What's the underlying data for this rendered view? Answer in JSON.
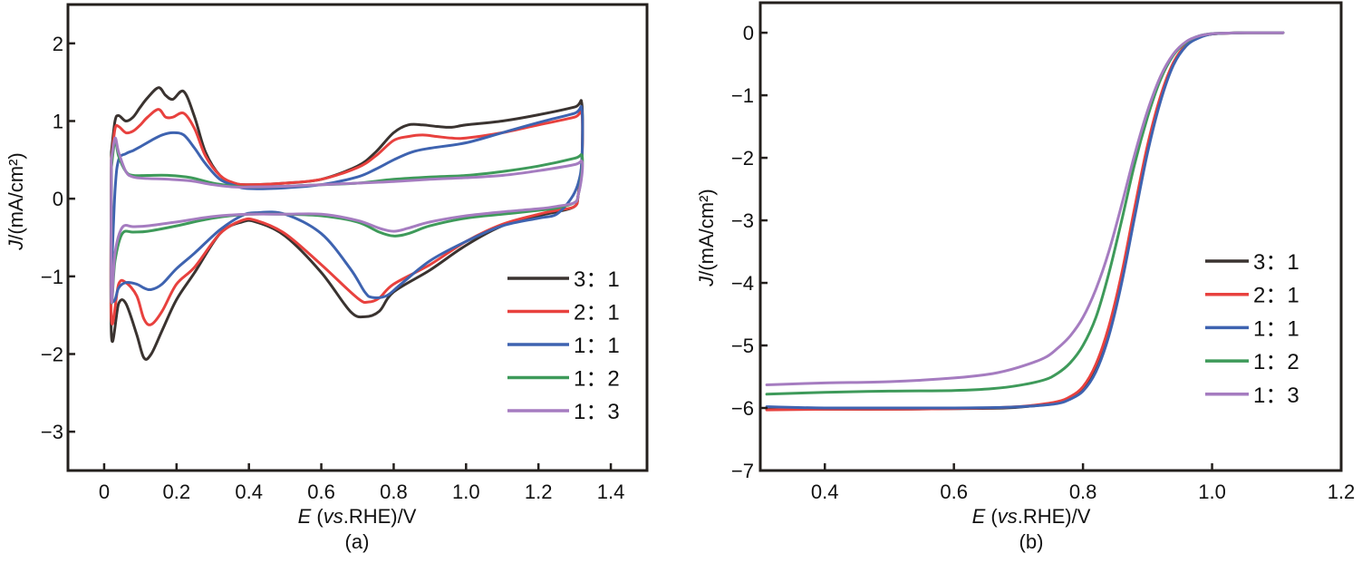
{
  "chart_data": [
    {
      "id": "a",
      "type": "line",
      "panel_label": "(a)",
      "title": "",
      "xlabel_parts": {
        "E": "E",
        "rest1": " (",
        "vs": "vs",
        "rest2": ".RHE)/V"
      },
      "ylabel": "J/(mA/cm²)",
      "xlim": [
        -0.1,
        1.5
      ],
      "ylim": [
        -3.5,
        2.5
      ],
      "xticks": [
        0,
        0.2,
        0.4,
        0.6,
        0.8,
        1.0,
        1.2,
        1.4
      ],
      "xtick_labels": [
        "0",
        "0.2",
        "0.4",
        "0.6",
        "0.8",
        "1.0",
        "1.2",
        "1.4"
      ],
      "yticks": [
        2,
        1,
        0,
        -1,
        -2,
        -3
      ],
      "ytick_labels": [
        "2",
        "1",
        "0",
        "−1",
        "−2",
        "−3"
      ],
      "grid": false,
      "legend_position": "bottom-right",
      "series": [
        {
          "name": "3：1",
          "color": "#3a3330",
          "x": [
            0.02,
            0.03,
            0.04,
            0.06,
            0.08,
            0.1,
            0.12,
            0.15,
            0.17,
            0.19,
            0.22,
            0.25,
            0.28,
            0.32,
            0.36,
            0.4,
            0.5,
            0.6,
            0.7,
            0.75,
            0.8,
            0.84,
            0.88,
            0.92,
            0.96,
            1.0,
            1.1,
            1.2,
            1.3,
            1.32,
            1.32,
            1.31,
            1.3,
            1.25,
            1.2,
            1.1,
            1.0,
            0.9,
            0.8,
            0.76,
            0.72,
            0.68,
            0.6,
            0.5,
            0.42,
            0.38,
            0.32,
            0.25,
            0.2,
            0.16,
            0.13,
            0.11,
            0.09,
            0.06,
            0.04,
            0.02,
            0.02
          ],
          "y": [
            0.6,
            1.0,
            1.07,
            1.0,
            1.05,
            1.18,
            1.3,
            1.43,
            1.33,
            1.28,
            1.38,
            1.05,
            0.6,
            0.3,
            0.2,
            0.18,
            0.2,
            0.25,
            0.42,
            0.6,
            0.85,
            0.95,
            0.95,
            0.93,
            0.92,
            0.95,
            1.0,
            1.08,
            1.18,
            1.22,
            0.5,
            0.05,
            -0.1,
            -0.17,
            -0.22,
            -0.35,
            -0.6,
            -0.92,
            -1.2,
            -1.45,
            -1.52,
            -1.45,
            -0.95,
            -0.48,
            -0.3,
            -0.3,
            -0.45,
            -0.95,
            -1.3,
            -1.7,
            -2.0,
            -2.05,
            -1.75,
            -1.35,
            -1.35,
            -1.75,
            0.6
          ]
        },
        {
          "name": "2：1",
          "color": "#e8413e",
          "x": [
            0.02,
            0.03,
            0.04,
            0.06,
            0.08,
            0.1,
            0.12,
            0.15,
            0.17,
            0.19,
            0.22,
            0.25,
            0.28,
            0.32,
            0.36,
            0.4,
            0.5,
            0.6,
            0.7,
            0.75,
            0.8,
            0.84,
            0.88,
            0.92,
            0.96,
            1.0,
            1.1,
            1.2,
            1.3,
            1.32,
            1.32,
            1.31,
            1.3,
            1.25,
            1.2,
            1.1,
            1.0,
            0.9,
            0.8,
            0.76,
            0.73,
            0.7,
            0.6,
            0.5,
            0.42,
            0.38,
            0.32,
            0.25,
            0.2,
            0.16,
            0.13,
            0.11,
            0.09,
            0.06,
            0.04,
            0.02,
            0.02
          ],
          "y": [
            0.5,
            0.9,
            0.93,
            0.85,
            0.87,
            0.95,
            1.05,
            1.15,
            1.05,
            1.05,
            1.1,
            0.9,
            0.55,
            0.3,
            0.2,
            0.18,
            0.2,
            0.25,
            0.4,
            0.55,
            0.75,
            0.8,
            0.82,
            0.8,
            0.78,
            0.78,
            0.85,
            0.95,
            1.05,
            1.1,
            0.45,
            0.05,
            -0.1,
            -0.15,
            -0.2,
            -0.33,
            -0.55,
            -0.85,
            -1.1,
            -1.28,
            -1.33,
            -1.28,
            -0.85,
            -0.45,
            -0.28,
            -0.28,
            -0.45,
            -0.88,
            -1.1,
            -1.45,
            -1.62,
            -1.55,
            -1.25,
            -1.08,
            -1.1,
            -1.55,
            0.5
          ]
        },
        {
          "name": "1：1",
          "color": "#3e63b0",
          "x": [
            0.02,
            0.03,
            0.04,
            0.06,
            0.08,
            0.1,
            0.13,
            0.16,
            0.19,
            0.22,
            0.25,
            0.28,
            0.32,
            0.36,
            0.4,
            0.5,
            0.6,
            0.7,
            0.75,
            0.8,
            0.85,
            0.9,
            1.0,
            1.1,
            1.2,
            1.3,
            1.32,
            1.32,
            1.31,
            1.29,
            1.25,
            1.2,
            1.1,
            1.0,
            0.9,
            0.82,
            0.78,
            0.74,
            0.72,
            0.68,
            0.6,
            0.5,
            0.42,
            0.38,
            0.32,
            0.25,
            0.2,
            0.16,
            0.13,
            0.11,
            0.09,
            0.06,
            0.04,
            0.03,
            0.02,
            0.02
          ],
          "y": [
            -1.0,
            0.1,
            0.5,
            0.58,
            0.62,
            0.67,
            0.75,
            0.82,
            0.85,
            0.82,
            0.65,
            0.45,
            0.25,
            0.17,
            0.13,
            0.14,
            0.18,
            0.28,
            0.38,
            0.5,
            0.6,
            0.65,
            0.72,
            0.85,
            0.98,
            1.1,
            1.15,
            0.5,
            0.2,
            0.0,
            -0.2,
            -0.25,
            -0.35,
            -0.55,
            -0.8,
            -1.1,
            -1.25,
            -1.27,
            -1.2,
            -0.9,
            -0.45,
            -0.2,
            -0.18,
            -0.22,
            -0.4,
            -0.7,
            -0.9,
            -1.1,
            -1.17,
            -1.15,
            -1.1,
            -1.08,
            -1.15,
            -1.3,
            -1.3,
            -1.0
          ]
        },
        {
          "name": "1：2",
          "color": "#3e9a5a",
          "x": [
            0.02,
            0.03,
            0.04,
            0.06,
            0.08,
            0.12,
            0.18,
            0.24,
            0.3,
            0.36,
            0.4,
            0.5,
            0.6,
            0.7,
            0.8,
            0.9,
            1.0,
            1.1,
            1.2,
            1.3,
            1.32,
            1.32,
            1.31,
            1.3,
            1.25,
            1.2,
            1.1,
            1.0,
            0.9,
            0.84,
            0.8,
            0.76,
            0.7,
            0.6,
            0.5,
            0.4,
            0.3,
            0.2,
            0.12,
            0.08,
            0.05,
            0.03,
            0.02,
            0.02
          ],
          "y": [
            0.4,
            0.75,
            0.55,
            0.35,
            0.3,
            0.3,
            0.3,
            0.27,
            0.2,
            0.16,
            0.15,
            0.16,
            0.18,
            0.2,
            0.25,
            0.28,
            0.3,
            0.35,
            0.42,
            0.52,
            0.56,
            0.35,
            0.05,
            -0.05,
            -0.12,
            -0.15,
            -0.2,
            -0.25,
            -0.35,
            -0.45,
            -0.48,
            -0.43,
            -0.3,
            -0.22,
            -0.2,
            -0.2,
            -0.25,
            -0.35,
            -0.42,
            -0.43,
            -0.45,
            -0.8,
            -1.3,
            0.4
          ]
        },
        {
          "name": "1：3",
          "color": "#a57cc0",
          "x": [
            0.02,
            0.03,
            0.04,
            0.06,
            0.08,
            0.12,
            0.18,
            0.24,
            0.3,
            0.36,
            0.4,
            0.5,
            0.6,
            0.7,
            0.8,
            0.9,
            1.0,
            1.1,
            1.2,
            1.3,
            1.32,
            1.32,
            1.31,
            1.3,
            1.25,
            1.2,
            1.1,
            1.0,
            0.9,
            0.84,
            0.8,
            0.76,
            0.7,
            0.6,
            0.5,
            0.4,
            0.3,
            0.2,
            0.12,
            0.08,
            0.05,
            0.03,
            0.02,
            0.02
          ],
          "y": [
            0.5,
            0.78,
            0.6,
            0.35,
            0.28,
            0.26,
            0.25,
            0.23,
            0.18,
            0.15,
            0.15,
            0.16,
            0.18,
            0.2,
            0.22,
            0.25,
            0.27,
            0.3,
            0.36,
            0.44,
            0.48,
            0.3,
            0.05,
            -0.05,
            -0.1,
            -0.13,
            -0.17,
            -0.22,
            -0.3,
            -0.38,
            -0.42,
            -0.38,
            -0.28,
            -0.2,
            -0.2,
            -0.2,
            -0.23,
            -0.3,
            -0.35,
            -0.36,
            -0.37,
            -0.7,
            -1.3,
            0.5
          ]
        }
      ]
    },
    {
      "id": "b",
      "type": "line",
      "panel_label": "(b)",
      "title": "",
      "xlabel_parts": {
        "E": "E",
        "rest1": " (",
        "vs": "vs",
        "rest2": ".RHE)/V"
      },
      "ylabel": "J/(mA/cm²)",
      "xlim": [
        0.3,
        1.2
      ],
      "ylim": [
        -7,
        0.48
      ],
      "xticks": [
        0.4,
        0.6,
        0.8,
        1.0,
        1.2
      ],
      "xtick_labels": [
        "0.4",
        "0.6",
        "0.8",
        "1.0",
        "1.2"
      ],
      "yticks": [
        0,
        -1,
        -2,
        -3,
        -4,
        -5,
        -6,
        -7
      ],
      "ytick_labels": [
        "0",
        "−1",
        "−2",
        "−3",
        "−4",
        "−5",
        "−6",
        "−7"
      ],
      "grid": false,
      "legend_position": "center-right",
      "series": [
        {
          "name": "3：1",
          "color": "#3a3330",
          "x": [
            0.31,
            0.4,
            0.5,
            0.6,
            0.68,
            0.72,
            0.76,
            0.78,
            0.8,
            0.82,
            0.84,
            0.86,
            0.88,
            0.9,
            0.92,
            0.94,
            0.96,
            0.98,
            1.0,
            1.03,
            1.06,
            1.11
          ],
          "y": [
            -6.02,
            -6.02,
            -6.02,
            -6.01,
            -6.0,
            -5.97,
            -5.92,
            -5.85,
            -5.7,
            -5.35,
            -4.75,
            -3.9,
            -2.85,
            -1.85,
            -1.05,
            -0.5,
            -0.2,
            -0.07,
            -0.02,
            -0.005,
            0.0,
            0.0
          ]
        },
        {
          "name": "2：1",
          "color": "#e8413e",
          "x": [
            0.31,
            0.4,
            0.5,
            0.6,
            0.68,
            0.72,
            0.76,
            0.78,
            0.8,
            0.82,
            0.84,
            0.86,
            0.88,
            0.9,
            0.92,
            0.94,
            0.96,
            0.98,
            1.0,
            1.03,
            1.06,
            1.11
          ],
          "y": [
            -6.03,
            -6.02,
            -6.02,
            -6.01,
            -5.99,
            -5.96,
            -5.9,
            -5.82,
            -5.66,
            -5.3,
            -4.7,
            -3.85,
            -2.8,
            -1.8,
            -1.02,
            -0.48,
            -0.19,
            -0.07,
            -0.02,
            -0.005,
            0.0,
            0.0
          ]
        },
        {
          "name": "1：1",
          "color": "#3e63b0",
          "x": [
            0.31,
            0.4,
            0.5,
            0.6,
            0.68,
            0.72,
            0.76,
            0.78,
            0.8,
            0.82,
            0.84,
            0.86,
            0.88,
            0.9,
            0.92,
            0.94,
            0.96,
            0.98,
            1.0,
            1.03,
            1.06,
            1.11
          ],
          "y": [
            -5.98,
            -6.0,
            -6.0,
            -6.0,
            -5.99,
            -5.97,
            -5.93,
            -5.86,
            -5.73,
            -5.42,
            -4.85,
            -4.0,
            -2.95,
            -1.92,
            -1.1,
            -0.52,
            -0.21,
            -0.08,
            -0.02,
            -0.005,
            0.0,
            0.0
          ]
        },
        {
          "name": "1：2",
          "color": "#3e9a5a",
          "x": [
            0.31,
            0.4,
            0.5,
            0.6,
            0.66,
            0.7,
            0.74,
            0.76,
            0.78,
            0.8,
            0.82,
            0.84,
            0.86,
            0.88,
            0.9,
            0.92,
            0.94,
            0.96,
            0.98,
            1.0,
            1.03,
            1.06,
            1.11
          ],
          "y": [
            -5.78,
            -5.75,
            -5.73,
            -5.72,
            -5.69,
            -5.64,
            -5.55,
            -5.45,
            -5.28,
            -5.0,
            -4.55,
            -3.85,
            -3.0,
            -2.1,
            -1.35,
            -0.75,
            -0.36,
            -0.15,
            -0.05,
            -0.015,
            -0.004,
            0.0,
            0.0
          ]
        },
        {
          "name": "1：3",
          "color": "#a57cc0",
          "x": [
            0.31,
            0.4,
            0.5,
            0.6,
            0.66,
            0.7,
            0.74,
            0.76,
            0.78,
            0.8,
            0.82,
            0.84,
            0.86,
            0.88,
            0.9,
            0.92,
            0.94,
            0.96,
            0.98,
            1.0,
            1.03,
            1.06,
            1.11
          ],
          "y": [
            -5.63,
            -5.6,
            -5.58,
            -5.52,
            -5.45,
            -5.35,
            -5.2,
            -5.05,
            -4.85,
            -4.55,
            -4.1,
            -3.5,
            -2.75,
            -1.95,
            -1.25,
            -0.7,
            -0.34,
            -0.14,
            -0.05,
            -0.015,
            -0.004,
            0.0,
            0.0
          ]
        }
      ]
    }
  ]
}
